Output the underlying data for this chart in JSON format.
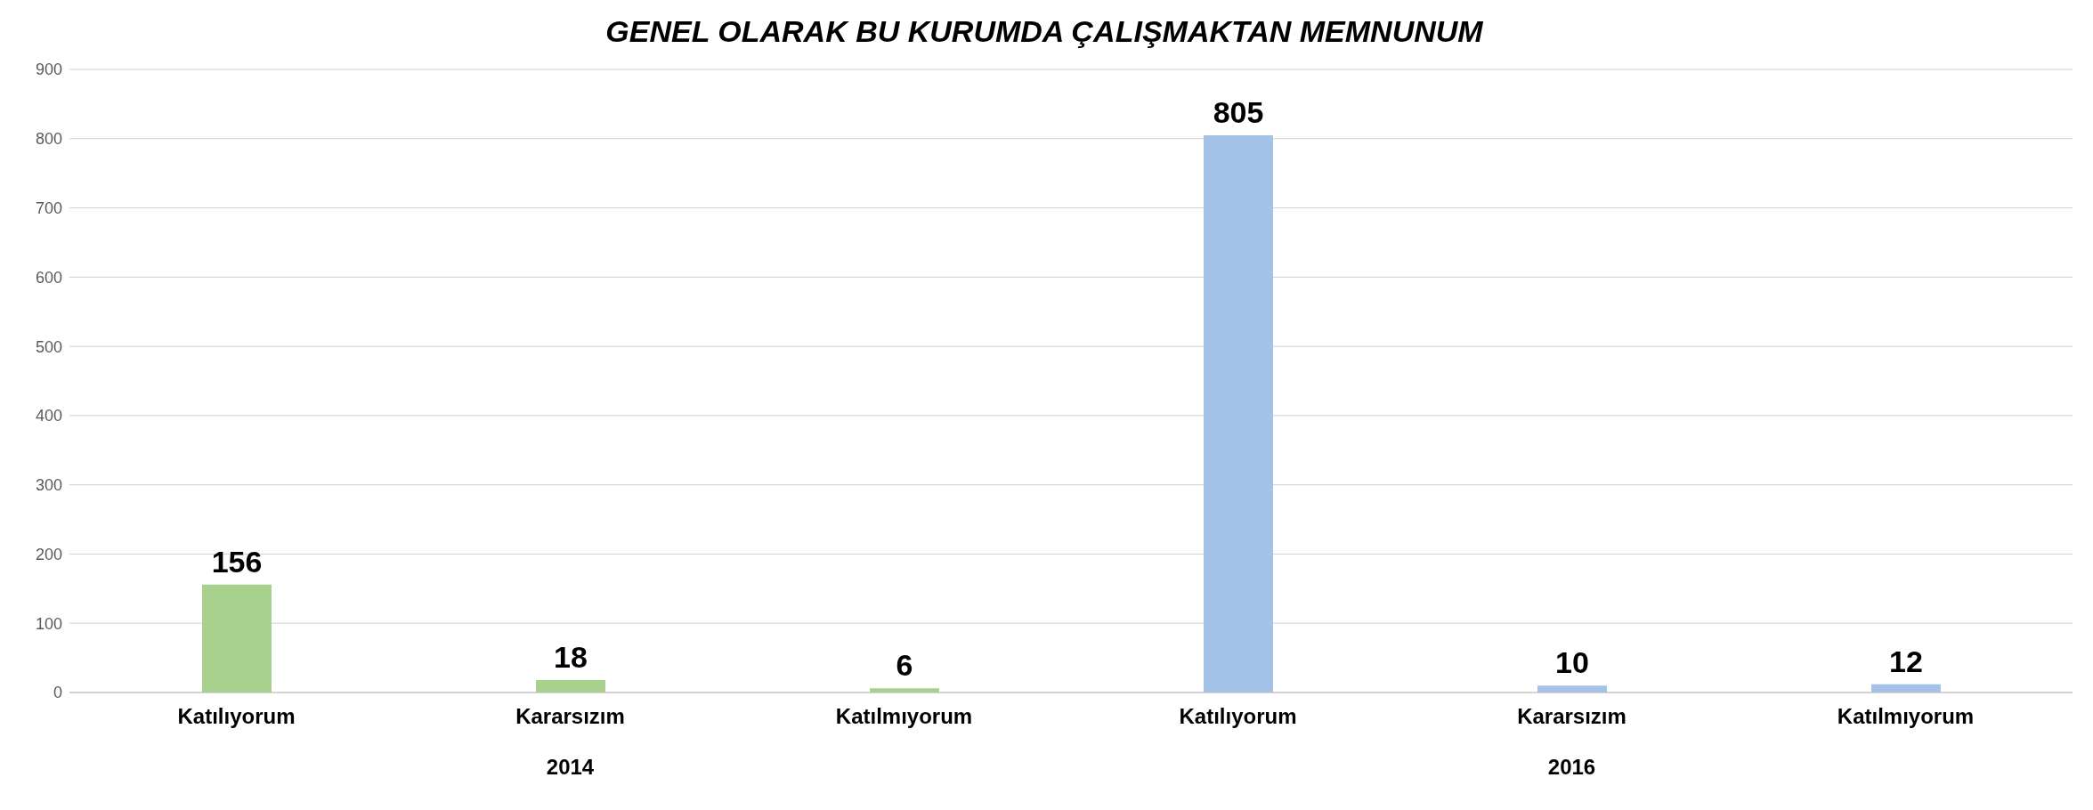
{
  "chart_data": {
    "type": "bar",
    "title": "GENEL OLARAK BU KURUMDA ÇALIŞMAKTAN MEMNUNUM",
    "categories": [
      "Katılıyorum",
      "Kararsızım",
      "Katılmıyorum",
      "Katılıyorum",
      "Kararsızım",
      "Katılmıyorum"
    ],
    "values": [
      156,
      18,
      6,
      805,
      10,
      12
    ],
    "colors": [
      "#a9d18e",
      "#a9d18e",
      "#a9d18e",
      "#a4c2e8",
      "#a4c2e8",
      "#a4c2e8"
    ],
    "ylim": [
      0,
      900
    ],
    "yticks": [
      0,
      100,
      200,
      300,
      400,
      500,
      600,
      700,
      800,
      900
    ],
    "grid": "y",
    "data_labels": true,
    "annotations": [
      "2014",
      "2016"
    ]
  }
}
